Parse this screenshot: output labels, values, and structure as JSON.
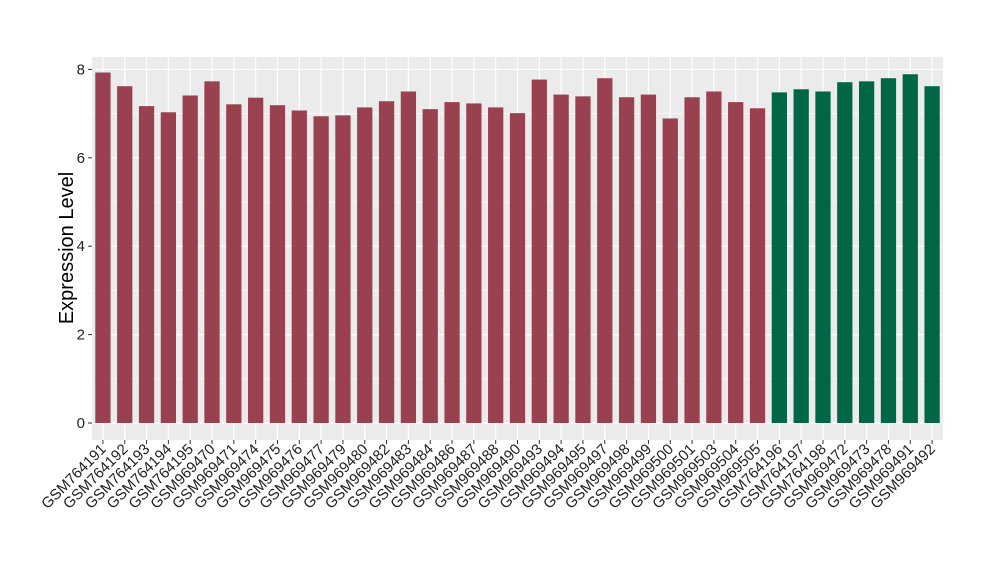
{
  "chart_data": {
    "type": "bar",
    "title": "",
    "xlabel": "",
    "ylabel": "Expression Level",
    "ylim": [
      0,
      8.3
    ],
    "yticks": [
      0,
      2,
      4,
      6,
      8
    ],
    "grid": true,
    "legend": "none",
    "colors": {
      "group1": "#9a4150",
      "group2": "#006645",
      "panel": "#ebebeb",
      "grid": "#ffffff"
    },
    "categories": [
      "GSM764191",
      "GSM764192",
      "GSM764193",
      "GSM764194",
      "GSM764195",
      "GSM969470",
      "GSM969471",
      "GSM969474",
      "GSM969475",
      "GSM969476",
      "GSM969477",
      "GSM969479",
      "GSM969480",
      "GSM969482",
      "GSM969483",
      "GSM969484",
      "GSM969486",
      "GSM969487",
      "GSM969488",
      "GSM969490",
      "GSM969493",
      "GSM969494",
      "GSM969495",
      "GSM969497",
      "GSM969498",
      "GSM969499",
      "GSM969500",
      "GSM969501",
      "GSM969503",
      "GSM969504",
      "GSM969505",
      "GSM764196",
      "GSM764197",
      "GSM764198",
      "GSM969472",
      "GSM969473",
      "GSM969478",
      "GSM969491",
      "GSM969492"
    ],
    "values": [
      7.93,
      7.62,
      7.17,
      7.03,
      7.41,
      7.73,
      7.21,
      7.36,
      7.19,
      7.07,
      6.94,
      6.96,
      7.14,
      7.28,
      7.5,
      7.1,
      7.26,
      7.23,
      7.14,
      7.01,
      7.77,
      7.43,
      7.39,
      7.8,
      7.37,
      7.43,
      6.89,
      7.37,
      7.5,
      7.26,
      7.12,
      7.48,
      7.55,
      7.5,
      7.71,
      7.73,
      7.8,
      7.89,
      7.62
    ],
    "groups": [
      1,
      1,
      1,
      1,
      1,
      1,
      1,
      1,
      1,
      1,
      1,
      1,
      1,
      1,
      1,
      1,
      1,
      1,
      1,
      1,
      1,
      1,
      1,
      1,
      1,
      1,
      1,
      1,
      1,
      1,
      1,
      2,
      2,
      2,
      2,
      2,
      2,
      2,
      2
    ]
  }
}
